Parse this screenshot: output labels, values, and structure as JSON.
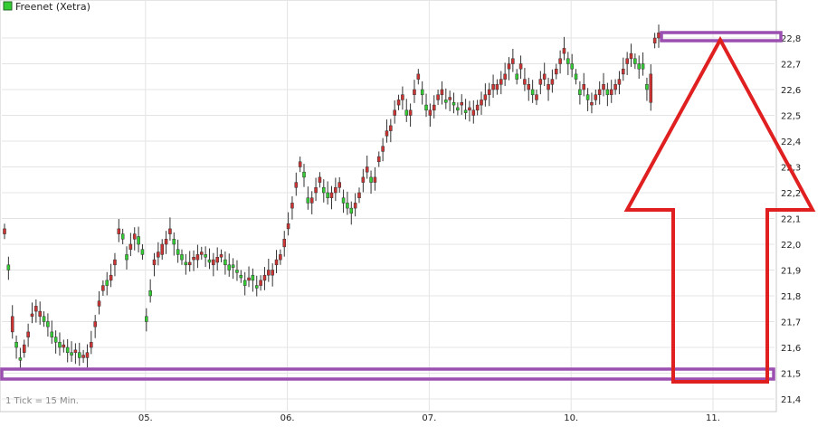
{
  "chart_data": {
    "type": "candlestick",
    "legend": {
      "entries": [
        {
          "label": "Freenet (Xetra)",
          "color": "#33cc33"
        }
      ],
      "placement": "top-left"
    },
    "footnote": "1 Tick = 15 Min.",
    "x_labels": [
      {
        "label": "05.",
        "index": 36
      },
      {
        "label": "06.",
        "index": 72
      },
      {
        "label": "07.",
        "index": 108
      },
      {
        "label": "10.",
        "index": 144
      },
      {
        "label": "11.",
        "index": 180
      }
    ],
    "ylim": [
      21.4,
      22.85
    ],
    "y_ticks": [
      "21,4",
      "21,5",
      "21,6",
      "21,7",
      "21,8",
      "21,9",
      "22,0",
      "22,1",
      "22,2",
      "22,3",
      "22,4",
      "22,5",
      "22,6",
      "22,7",
      "22,8"
    ],
    "up_color": "#33cc33",
    "down_color": "#cc3333",
    "grid": true,
    "axis_position": "right",
    "series_closes": [
      22.04,
      21.92,
      21.66,
      21.62,
      21.56,
      21.58,
      21.64,
      21.72,
      21.74,
      21.72,
      21.72,
      21.7,
      21.66,
      21.64,
      21.62,
      21.6,
      21.6,
      21.58,
      21.58,
      21.58,
      21.56,
      21.56,
      21.6,
      21.68,
      21.76,
      21.82,
      21.86,
      21.86,
      21.92,
      22.04,
      22.04,
      21.96,
      21.98,
      22.02,
      22.03,
      21.98,
      21.72,
      21.82,
      21.92,
      21.95,
      21.96,
      22.0,
      22.04,
      22.02,
      21.98,
      21.96,
      21.93,
      21.92,
      21.94,
      21.94,
      21.96,
      21.96,
      21.94,
      21.92,
      21.93,
      21.95,
      21.94,
      21.92,
      21.92,
      21.9,
      21.88,
      21.86,
      21.86,
      21.88,
      21.84,
      21.84,
      21.86,
      21.88,
      21.88,
      21.92,
      21.94,
      21.99,
      22.06,
      22.14,
      22.22,
      22.3,
      22.28,
      22.18,
      22.16,
      22.2,
      22.24,
      22.22,
      22.2,
      22.18,
      22.2,
      22.22,
      22.18,
      22.16,
      22.14,
      22.14,
      22.18,
      22.24,
      22.28,
      22.26,
      22.24,
      22.32,
      22.36,
      22.42,
      22.44,
      22.5,
      22.54,
      22.56,
      22.52,
      22.5,
      22.58,
      22.64,
      22.6,
      22.54,
      22.5,
      22.52,
      22.56,
      22.58,
      22.56,
      22.56,
      22.55,
      22.53,
      22.54,
      22.52,
      22.52,
      22.5,
      22.52,
      22.54,
      22.56,
      22.58,
      22.6,
      22.6,
      22.62,
      22.64,
      22.68,
      22.7,
      22.66,
      22.68,
      22.62,
      22.6,
      22.6,
      22.56,
      22.62,
      22.64,
      22.6,
      22.62,
      22.66,
      22.7,
      22.74,
      22.72,
      22.7,
      22.66,
      22.6,
      22.6,
      22.58,
      22.54,
      22.56,
      22.58,
      22.6,
      22.6,
      22.58,
      22.6,
      22.62,
      22.66,
      22.7,
      22.72,
      22.72,
      22.7,
      22.7,
      22.62,
      22.55,
      22.78,
      22.8
    ],
    "opens": [
      22.06,
      21.9,
      21.72,
      21.6,
      21.55,
      21.61,
      21.66,
      21.73,
      21.76,
      21.74,
      21.7,
      21.68,
      21.64,
      21.62,
      21.6,
      21.61,
      21.58,
      21.57,
      21.59,
      21.56,
      21.57,
      21.58,
      21.62,
      21.7,
      21.78,
      21.84,
      21.84,
      21.88,
      21.94,
      22.06,
      22.02,
      21.94,
      22.0,
      22.04,
      22.0,
      21.96,
      21.7,
      21.8,
      21.94,
      21.97,
      22.0,
      22.02,
      22.06,
      22.0,
      21.96,
      21.94,
      21.92,
      21.93,
      21.95,
      21.96,
      21.97,
      21.95,
      21.93,
      21.94,
      21.95,
      21.96,
      21.92,
      21.9,
      21.91,
      21.89,
      21.87,
      21.84,
      21.87,
      21.86,
      21.83,
      21.86,
      21.88,
      21.9,
      21.9,
      21.94,
      21.96,
      22.02,
      22.08,
      22.16,
      22.24,
      22.32,
      22.26,
      22.16,
      22.18,
      22.22,
      22.26,
      22.2,
      22.18,
      22.2,
      22.22,
      22.24,
      22.16,
      22.14,
      22.12,
      22.16,
      22.2,
      22.26,
      22.3,
      22.24,
      22.26,
      22.34,
      22.38,
      22.44,
      22.46,
      22.52,
      22.56,
      22.58,
      22.5,
      22.52,
      22.6,
      22.66,
      22.58,
      22.52,
      22.52,
      22.54,
      22.58,
      22.6,
      22.55,
      22.57,
      22.54,
      22.52,
      22.55,
      22.51,
      22.53,
      22.52,
      22.54,
      22.56,
      22.58,
      22.6,
      22.62,
      22.62,
      22.64,
      22.66,
      22.7,
      22.72,
      22.64,
      22.7,
      22.64,
      22.62,
      22.58,
      22.58,
      22.64,
      22.66,
      22.62,
      22.64,
      22.68,
      22.72,
      22.76,
      22.7,
      22.68,
      22.64,
      22.58,
      22.62,
      22.56,
      22.55,
      22.58,
      22.6,
      22.62,
      22.58,
      22.6,
      22.62,
      22.64,
      22.68,
      22.72,
      22.74,
      22.7,
      22.68,
      22.68,
      22.6,
      22.66,
      22.8,
      22.82
    ]
  }
}
